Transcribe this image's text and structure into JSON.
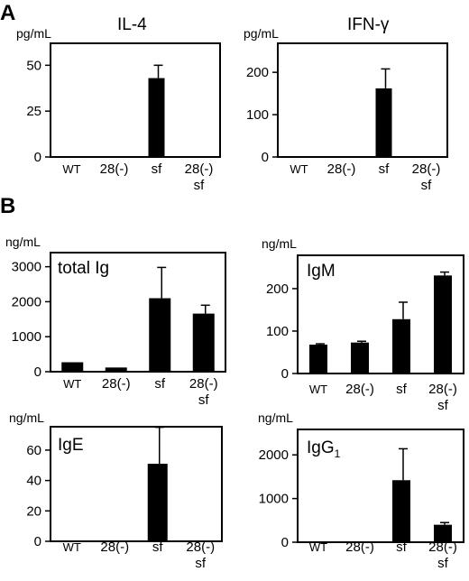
{
  "panels": {
    "a": "A",
    "b": "B"
  },
  "colors": {
    "bar": "#000000",
    "axis": "#000000",
    "background": "#ffffff"
  },
  "chart_data": [
    {
      "id": "il4",
      "type": "bar",
      "title": "IL-4",
      "unit": "pg/mL",
      "categories": [
        "WT",
        "28(-)",
        "sf",
        "28(-)\nsf"
      ],
      "values": [
        0,
        0,
        43,
        0
      ],
      "errors": [
        0,
        0,
        7,
        0
      ],
      "ylim": [
        0,
        60
      ],
      "yticks": [
        0,
        25,
        50
      ],
      "title_position": "above"
    },
    {
      "id": "ifng",
      "type": "bar",
      "title": "IFN-γ",
      "unit": "pg/mL",
      "categories": [
        "WT",
        "28(-)",
        "sf",
        "28(-)\nsf"
      ],
      "values": [
        0,
        0,
        162,
        0
      ],
      "errors": [
        0,
        0,
        46,
        0
      ],
      "ylim": [
        0,
        260
      ],
      "yticks": [
        0,
        100,
        200
      ],
      "title_position": "above"
    },
    {
      "id": "totalig",
      "type": "bar",
      "title": "total Ig",
      "unit": "ng/mL",
      "categories": [
        "WT",
        "28(-)",
        "sf",
        "28(-)\nsf"
      ],
      "values": [
        270,
        120,
        2100,
        1660
      ],
      "errors": [
        0,
        0,
        880,
        240
      ],
      "ylim": [
        0,
        3300
      ],
      "yticks": [
        0,
        1000,
        2000,
        3000
      ],
      "title_position": "inside"
    },
    {
      "id": "igm",
      "type": "bar",
      "title": "IgM",
      "unit": "ng/mL",
      "categories": [
        "WT",
        "28(-)",
        "sf",
        "28(-)\nsf"
      ],
      "values": [
        68,
        73,
        128,
        231
      ],
      "errors": [
        2,
        3,
        40,
        8
      ],
      "ylim": [
        0,
        270
      ],
      "yticks": [
        0,
        100,
        200
      ],
      "title_position": "inside"
    },
    {
      "id": "ige",
      "type": "bar",
      "title": "IgE",
      "unit": "ng/mL",
      "categories": [
        "WT",
        "28(-)",
        "sf",
        "28(-)\nsf"
      ],
      "values": [
        0,
        0,
        51,
        0
      ],
      "errors": [
        0,
        0,
        24,
        0
      ],
      "ylim": [
        0,
        73
      ],
      "yticks": [
        0,
        20,
        40,
        60
      ],
      "title_position": "inside"
    },
    {
      "id": "igg1",
      "type": "bar",
      "title": "IgG",
      "title_sub": "1",
      "unit": "ng/mL",
      "categories": [
        "WT",
        "28(-)",
        "sf",
        "28(-)\nsf"
      ],
      "values": [
        0,
        0,
        1420,
        400
      ],
      "errors": [
        0,
        0,
        720,
        50
      ],
      "ylim": [
        0,
        2500
      ],
      "yticks": [
        0,
        1000,
        2000
      ],
      "title_position": "inside"
    }
  ]
}
